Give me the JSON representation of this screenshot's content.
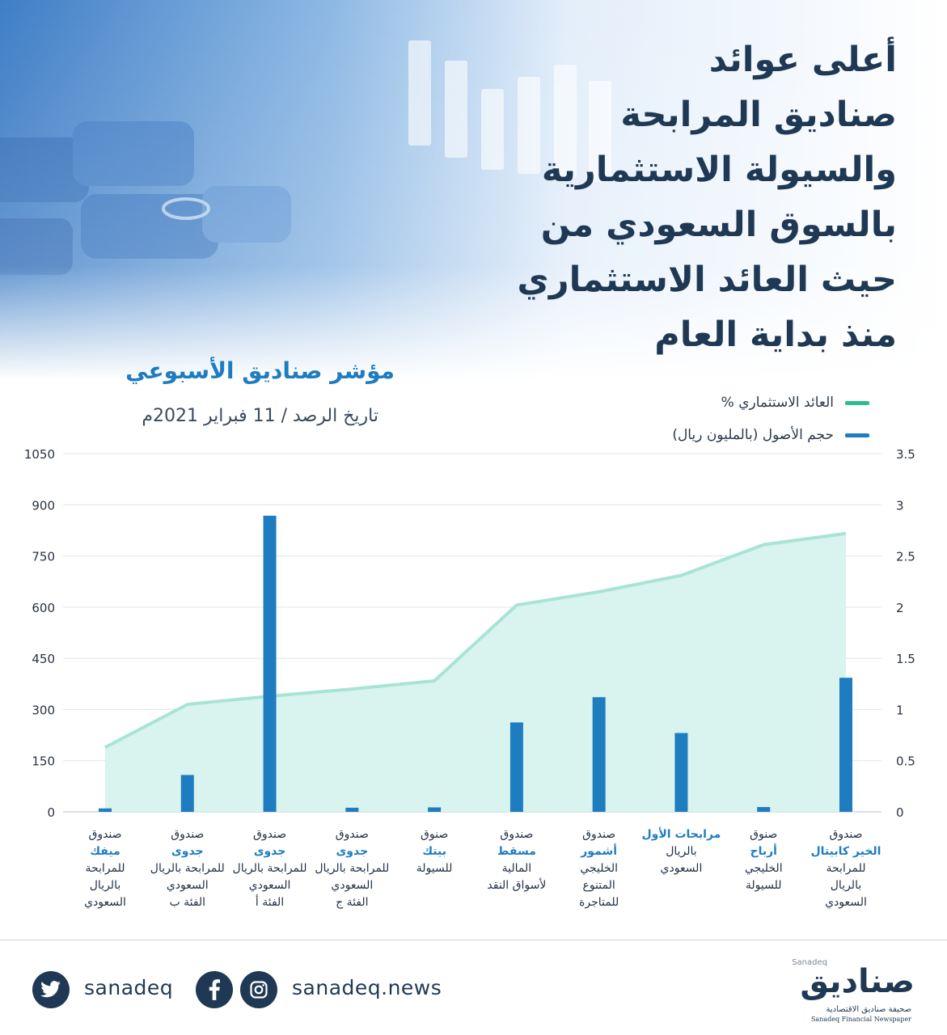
{
  "headline": {
    "lines": [
      "أعلى عوائد",
      "صناديق المرابحة",
      "والسيولة الاستثمارية",
      "بالسوق السعودي من",
      "حيث العائد الاستثماري",
      "منذ بداية العام"
    ]
  },
  "subtitle": {
    "title": "مؤشر صناديق الأسبوعي",
    "date": "تاريخ الرصد / 11 فبراير 2021م"
  },
  "legend": {
    "return_label": "العائد الاستثماري %",
    "assets_label": "حجم الأصول (بالمليون ريال)"
  },
  "colors": {
    "return_line": "#a8e4d6",
    "return_fill": "#d9f3ee",
    "legend_return": "#2ebc93",
    "assets_bar": "#1e7cc0",
    "title_dark": "#1f3954",
    "accent_blue": "#1e7cc0"
  },
  "chart_data": {
    "type": "bar",
    "left_axis_ticks": [
      "1050",
      "900",
      "750",
      "600",
      "450",
      "300",
      "150",
      "0"
    ],
    "right_axis_ticks": [
      "3.5",
      "3",
      "2.5",
      "2",
      "1.5",
      "1",
      "0.5",
      "0"
    ],
    "left_ylim": [
      0,
      1050
    ],
    "right_ylim": [
      0,
      3.5
    ],
    "grid": true,
    "categories": [
      {
        "l1": "صندوق",
        "l2": "ميفك",
        "l3": [
          "للمرابحة",
          "بالريال",
          "السعودي"
        ]
      },
      {
        "l1": "صندوق",
        "l2": "جدوى",
        "l3": [
          "للمرابحة بالريال",
          "السعودي",
          "الفئة ب"
        ]
      },
      {
        "l1": "صندوق",
        "l2": "جدوى",
        "l3": [
          "للمرابحة بالريال",
          "السعودي",
          "الفئة أ"
        ]
      },
      {
        "l1": "صندوق",
        "l2": "جدوى",
        "l3": [
          "للمرابحة بالريال",
          "السعودي",
          "الفئة ج"
        ]
      },
      {
        "l1": "صنوق",
        "l2": "بيتك",
        "l3": [
          "للسيولة"
        ]
      },
      {
        "l1": "صندوق",
        "l2": "مسقط",
        "l3": [
          "المالية",
          "لأسواق النقد"
        ]
      },
      {
        "l1": "صندوق",
        "l2": "أشمور",
        "l3": [
          "الخليجي",
          "المتنوع",
          "للمتاجرة"
        ]
      },
      {
        "l1": "",
        "l2": "مرابحات الأول",
        "l3": [
          "بالريال",
          "السعودي"
        ]
      },
      {
        "l1": "صنوق",
        "l2": "أرباح",
        "l3": [
          "الخليجي",
          "للسيولة"
        ]
      },
      {
        "l1": "صندوق",
        "l2": "الخير كابيتال",
        "l3": [
          "للمرابحة",
          "بالريال",
          "السعودي"
        ]
      }
    ],
    "series": [
      {
        "name": "حجم الأصول (بالمليون ريال)",
        "type": "bar",
        "axis": "left",
        "values": [
          10,
          108,
          868,
          12,
          13,
          262,
          336,
          231,
          14,
          393
        ]
      },
      {
        "name": "العائد الاستثماري %",
        "type": "area",
        "axis": "right",
        "values": [
          0.63,
          1.05,
          1.13,
          1.2,
          1.28,
          2.02,
          2.15,
          2.31,
          2.61,
          2.72
        ]
      }
    ]
  },
  "footer": {
    "twitter_handle": "sanadeq",
    "site_handle": "sanadeq.news",
    "logo_latin": "Sanadeq",
    "logo_arabic": "صناديق",
    "logo_tagline_ar": "صحيفة صناديق الاقتصادية",
    "logo_tagline_en": "Sanadeq Financial Newspaper"
  }
}
